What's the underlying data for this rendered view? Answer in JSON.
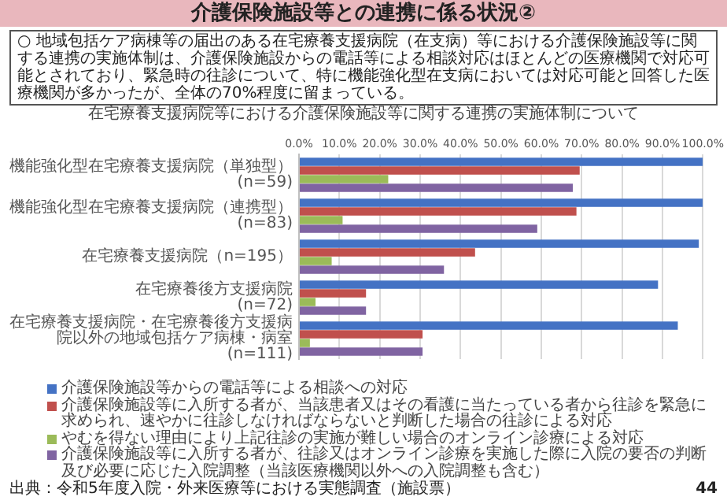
{
  "chart_data": {
    "type": "bar",
    "orientation": "horizontal",
    "title": "介護保険施設等との連携に係る状況②",
    "subtitle": "在宅療養支援病院等における介護保険施設等に関する連携の実施体制について",
    "annotations": [
      "○ 地域包括ケア病棟等の届出のある在宅療養支援病院（在支病）等における介護保険施設等に関する連携の実施体制は、介護保険施設からの電話等による相談対応はほとんどの医療機関で対応可能とされており、緊急時の往診について、特に機能強化型在支病においては対応可能と回答した医療機関が多かったが、全体の70%程度に留まっている。",
      "出典：令和5年度入院・外来医療等における実態調査（施設票）",
      "44"
    ],
    "categories": [
      "機能強化型在宅療養支援病院（単独型）\n(n=59)",
      "機能強化型在宅療養支援病院（連携型）\n(n=83)",
      "在宅療養支援病院（n=195）",
      "在宅療養後方支援病院\n(n=72)",
      "在宅療養支援病院・在宅療養後方支援病院以外の地域包括ケア病棟・病室\n(n=111)"
    ],
    "series": [
      {
        "name": "介護保険施設等からの電話等による相談への対応",
        "color": "#4472c4",
        "values": [
          100,
          100,
          99,
          88.9,
          93.8
        ]
      },
      {
        "name": "介護保険施設等に入所する者が、当該患者又はその看護に当たっている者から往診を緊急に求められ、速やかに往診しなければならないと判断した場合の往診による対応",
        "color": "#c0504d",
        "values": [
          69.5,
          68.7,
          43.6,
          16.6,
          30.6
        ]
      },
      {
        "name": "やむを得ない理由により上記往診の実施が難しい場合のオンライン診療による対応",
        "color": "#9bbb59",
        "values": [
          22.1,
          10.8,
          8.1,
          4.1,
          2.7
        ]
      },
      {
        "name": "介護保険施設等に入所する者が、往診又はオンライン診療を実施した際に入院の要否の判断及び必要に応じた入院調整（当該医療機関以外への入院調整も含む）",
        "color": "#8064a2",
        "values": [
          67.8,
          59.0,
          35.9,
          16.6,
          30.6
        ]
      }
    ],
    "xlim": [
      0,
      100
    ],
    "xticks": [
      {
        "value": 0,
        "label": "0.0%"
      },
      {
        "value": 10,
        "label": "10.0%"
      },
      {
        "value": 20,
        "label": "20.0%"
      },
      {
        "value": 30,
        "label": "30.0%"
      },
      {
        "value": 40,
        "label": "40.0%"
      },
      {
        "value": 50,
        "label": "50.0%"
      },
      {
        "value": 60,
        "label": "60.0%"
      },
      {
        "value": 70,
        "label": "70.0%"
      },
      {
        "value": 80,
        "label": "80.0%"
      },
      {
        "value": 90,
        "label": "90.0%"
      },
      {
        "value": 100,
        "label": "100.0%"
      }
    ],
    "grid": "x",
    "legend": "bottom"
  }
}
